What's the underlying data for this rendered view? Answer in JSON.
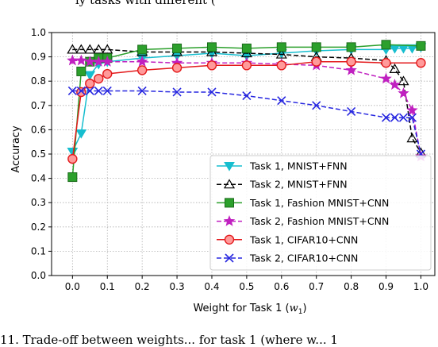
{
  "captions": {
    "top": "ly tasks with different (",
    "bottom": "11. Trade-off between weights... for task 1 (where w... 1"
  },
  "chart_data": {
    "type": "line",
    "xlabel": "Weight for Task 1 (",
    "xlabel_var": "w",
    "xlabel_sub": "1",
    "xlabel_end": ")",
    "ylabel": "Accuracy",
    "xlim": [
      -0.06,
      1.04
    ],
    "ylim": [
      0.0,
      1.0
    ],
    "xticks": [
      0.0,
      0.1,
      0.2,
      0.3,
      0.4,
      0.5,
      0.6,
      0.7,
      0.8,
      0.9,
      1.0
    ],
    "xtick_labels": [
      "0.0",
      "0.1",
      "0.2",
      "0.3",
      "0.4",
      "0.5",
      "0.6",
      "0.7",
      "0.8",
      "0.9",
      "1.0"
    ],
    "yticks": [
      0.0,
      0.1,
      0.2,
      0.3,
      0.4,
      0.5,
      0.6,
      0.7,
      0.8,
      0.9,
      1.0
    ],
    "ytick_labels": [
      "0.0",
      "0.1",
      "0.2",
      "0.3",
      "0.4",
      "0.5",
      "0.6",
      "0.7",
      "0.8",
      "0.9",
      "1.0"
    ],
    "grid": true,
    "legend_position": "lower-right",
    "series": [
      {
        "name": "Task 1, MNIST+FNN",
        "color": "#17becf",
        "marker": "triangle-down",
        "dash": "solid",
        "marker_fill": "#17becf",
        "x": [
          0.0,
          0.025,
          0.05,
          0.075,
          0.1,
          0.2,
          0.3,
          0.4,
          0.5,
          0.6,
          0.7,
          0.8,
          0.9,
          0.925,
          0.95,
          0.975,
          1.0
        ],
        "y": [
          0.51,
          0.585,
          0.825,
          0.87,
          0.88,
          0.895,
          0.905,
          0.915,
          0.905,
          0.915,
          0.925,
          0.93,
          0.93,
          0.935,
          0.935,
          0.935,
          0.94
        ]
      },
      {
        "name": "Task 2, MNIST+FNN",
        "color": "#000000",
        "marker": "triangle-up",
        "dash": "dashed",
        "marker_fill": "none",
        "x": [
          0.0,
          0.025,
          0.05,
          0.075,
          0.1,
          0.2,
          0.3,
          0.4,
          0.5,
          0.6,
          0.7,
          0.8,
          0.9,
          0.925,
          0.95,
          0.975,
          1.0
        ],
        "y": [
          0.93,
          0.93,
          0.93,
          0.93,
          0.93,
          0.92,
          0.92,
          0.92,
          0.915,
          0.91,
          0.9,
          0.895,
          0.885,
          0.85,
          0.8,
          0.565,
          0.505
        ]
      },
      {
        "name": "Task 1, Fashion MNIST+CNN",
        "color": "#2ca02c",
        "marker": "square",
        "dash": "solid",
        "marker_fill": "#2ca02c",
        "x": [
          0.0,
          0.025,
          0.05,
          0.075,
          0.1,
          0.2,
          0.3,
          0.4,
          0.5,
          0.6,
          0.7,
          0.8,
          0.9,
          1.0
        ],
        "y": [
          0.405,
          0.84,
          0.88,
          0.895,
          0.895,
          0.93,
          0.935,
          0.94,
          0.935,
          0.94,
          0.94,
          0.94,
          0.95,
          0.945
        ]
      },
      {
        "name": "Task 2, Fashion MNIST+CNN",
        "color": "#c020c0",
        "marker": "star",
        "dash": "dashed",
        "marker_fill": "#c020c0",
        "x": [
          0.0,
          0.025,
          0.05,
          0.075,
          0.1,
          0.2,
          0.3,
          0.4,
          0.5,
          0.6,
          0.7,
          0.8,
          0.9,
          0.925,
          0.95,
          0.975,
          1.0
        ],
        "y": [
          0.885,
          0.885,
          0.88,
          0.88,
          0.88,
          0.88,
          0.875,
          0.875,
          0.875,
          0.87,
          0.865,
          0.845,
          0.81,
          0.785,
          0.75,
          0.68,
          0.49
        ]
      },
      {
        "name": "Task 1, CIFAR10+CNN",
        "color": "#e31a1c",
        "marker": "circle",
        "dash": "solid",
        "marker_fill": "#ff9a9a",
        "x": [
          0.0,
          0.025,
          0.05,
          0.075,
          0.1,
          0.2,
          0.3,
          0.4,
          0.5,
          0.6,
          0.7,
          0.8,
          0.9,
          1.0
        ],
        "y": [
          0.48,
          0.755,
          0.79,
          0.81,
          0.83,
          0.845,
          0.855,
          0.865,
          0.865,
          0.865,
          0.88,
          0.88,
          0.875,
          0.875
        ]
      },
      {
        "name": "Task 2, CIFAR10+CNN",
        "color": "#2828e0",
        "marker": "x",
        "dash": "dashed",
        "marker_fill": "none",
        "x": [
          0.0,
          0.025,
          0.05,
          0.075,
          0.1,
          0.2,
          0.3,
          0.4,
          0.5,
          0.6,
          0.7,
          0.8,
          0.9,
          0.925,
          0.95,
          0.975,
          1.0
        ],
        "y": [
          0.76,
          0.76,
          0.76,
          0.76,
          0.76,
          0.76,
          0.755,
          0.755,
          0.74,
          0.72,
          0.7,
          0.675,
          0.65,
          0.65,
          0.65,
          0.65,
          0.5
        ]
      }
    ]
  }
}
